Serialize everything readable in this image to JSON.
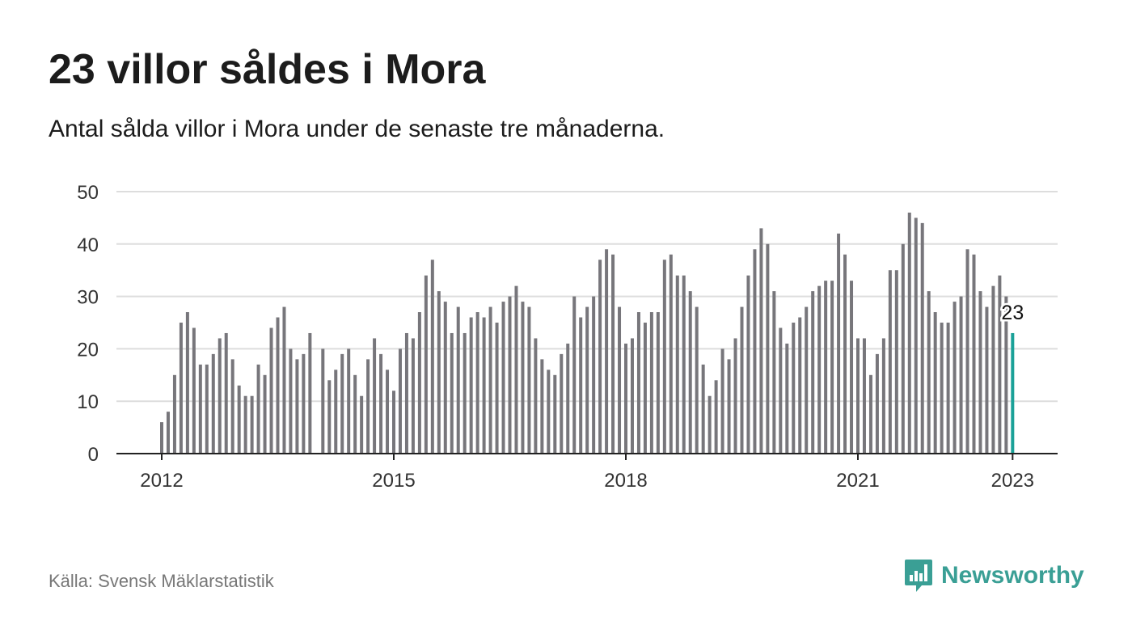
{
  "title": "23 villor såldes i Mora",
  "subtitle": "Antal sålda villor i Mora under de senaste tre månaderna.",
  "source": "Källa: Svensk Mäklarstatistik",
  "brand": {
    "name": "Newsworthy",
    "color": "#3a9f95",
    "icon": "bar-chart-speech-bubble-icon"
  },
  "colors": {
    "bar": "#77767b",
    "highlight": "#1aa198",
    "grid": "#dddddd",
    "axis": "#222222",
    "text": "#333333"
  },
  "chart_data": {
    "type": "bar",
    "title": "23 villor såldes i Mora",
    "subtitle": "Antal sålda villor i Mora under de senaste tre månaderna.",
    "start": "2012-01",
    "ylim": [
      0,
      50
    ],
    "yticks": [
      0,
      10,
      20,
      30,
      40,
      50
    ],
    "xticks": [
      "2012",
      "2015",
      "2018",
      "2021",
      "2023"
    ],
    "grid": true,
    "values": [
      6,
      8,
      15,
      25,
      27,
      24,
      17,
      17,
      19,
      22,
      23,
      18,
      13,
      11,
      11,
      17,
      15,
      24,
      26,
      28,
      20,
      18,
      19,
      23,
      null,
      20,
      14,
      16,
      19,
      20,
      15,
      11,
      18,
      22,
      19,
      16,
      12,
      20,
      23,
      22,
      27,
      34,
      37,
      31,
      29,
      23,
      28,
      23,
      26,
      27,
      26,
      28,
      25,
      29,
      30,
      32,
      29,
      28,
      22,
      18,
      16,
      15,
      19,
      21,
      30,
      26,
      28,
      30,
      37,
      39,
      38,
      28,
      21,
      22,
      27,
      25,
      27,
      27,
      37,
      38,
      34,
      34,
      31,
      28,
      17,
      11,
      14,
      20,
      18,
      22,
      28,
      34,
      39,
      43,
      40,
      31,
      24,
      21,
      25,
      26,
      28,
      31,
      32,
      33,
      33,
      42,
      38,
      33,
      22,
      22,
      15,
      19,
      22,
      35,
      35,
      40,
      46,
      45,
      44,
      31,
      27,
      25,
      25,
      29,
      30,
      39,
      38,
      31,
      28,
      32,
      34,
      30,
      23
    ],
    "highlight": {
      "label": "23",
      "value": 23
    }
  }
}
